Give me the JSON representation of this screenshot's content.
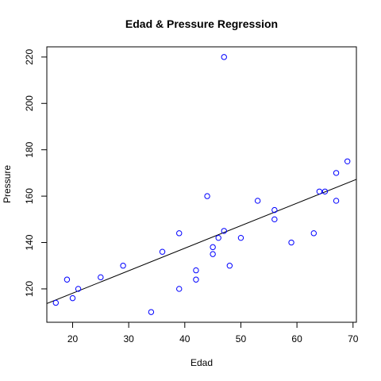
{
  "chart_data": {
    "type": "scatter",
    "title": "Edad & Pressure Regression",
    "xlabel": "Edad",
    "ylabel": "Pressure",
    "xlim": [
      15.4,
      70.6
    ],
    "ylim": [
      105.6,
      224.4
    ],
    "xticks": [
      20,
      30,
      40,
      50,
      60,
      70
    ],
    "yticks": [
      120,
      140,
      160,
      180,
      200,
      220
    ],
    "grid": false,
    "point_color": "#0000FF",
    "line_color": "#000000",
    "points": [
      {
        "x": 17,
        "y": 114
      },
      {
        "x": 19,
        "y": 124
      },
      {
        "x": 20,
        "y": 116
      },
      {
        "x": 21,
        "y": 120
      },
      {
        "x": 25,
        "y": 125
      },
      {
        "x": 29,
        "y": 130
      },
      {
        "x": 34,
        "y": 110
      },
      {
        "x": 36,
        "y": 136
      },
      {
        "x": 39,
        "y": 144
      },
      {
        "x": 39,
        "y": 120
      },
      {
        "x": 42,
        "y": 124
      },
      {
        "x": 42,
        "y": 128
      },
      {
        "x": 44,
        "y": 160
      },
      {
        "x": 45,
        "y": 138
      },
      {
        "x": 45,
        "y": 135
      },
      {
        "x": 46,
        "y": 142
      },
      {
        "x": 47,
        "y": 220
      },
      {
        "x": 47,
        "y": 145
      },
      {
        "x": 48,
        "y": 130
      },
      {
        "x": 50,
        "y": 142
      },
      {
        "x": 53,
        "y": 158
      },
      {
        "x": 56,
        "y": 154
      },
      {
        "x": 56,
        "y": 150
      },
      {
        "x": 59,
        "y": 140
      },
      {
        "x": 63,
        "y": 144
      },
      {
        "x": 64,
        "y": 162
      },
      {
        "x": 65,
        "y": 162
      },
      {
        "x": 67,
        "y": 170
      },
      {
        "x": 67,
        "y": 158
      },
      {
        "x": 69,
        "y": 175
      }
    ],
    "regression": {
      "intercept": 98.71,
      "slope": 0.9709
    }
  }
}
